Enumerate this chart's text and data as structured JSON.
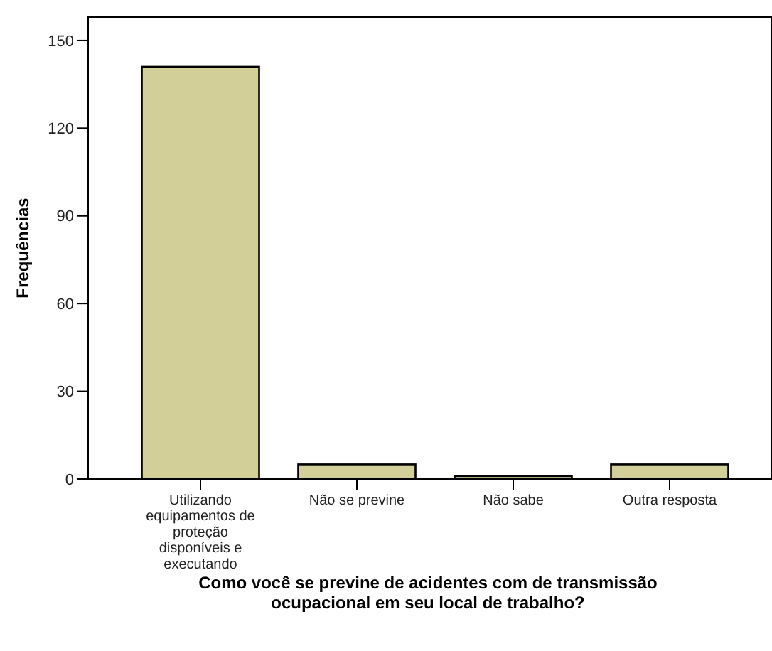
{
  "chart_data": {
    "type": "bar",
    "xlabel": "Como você se previne de acidentes com de transmissão ocupacional em seu local de trabalho?",
    "ylabel": "Frequências",
    "categories": [
      "Utilizando equipamentos de proteção disponíveis e executando",
      "Não se previne",
      "Não sabe",
      "Outra resposta"
    ],
    "values": [
      141,
      5,
      1,
      5
    ],
    "color": "#d2cf98",
    "ylim": [
      0,
      158
    ],
    "yticks": [
      0,
      30,
      60,
      90,
      120,
      150
    ],
    "grid": false
  }
}
